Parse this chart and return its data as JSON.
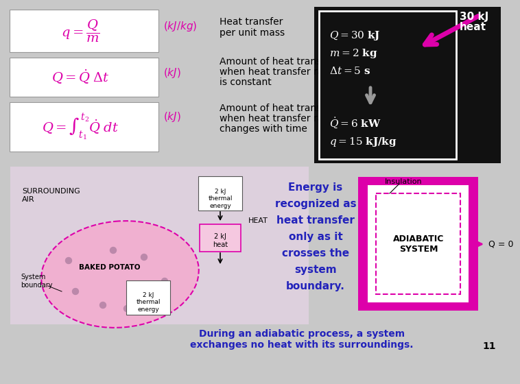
{
  "bg_color": "#c8c8c8",
  "slide_num": "11",
  "formula1_desc1": "Heat transfer",
  "formula1_desc2": "per unit mass",
  "formula2_desc1": "Amount of heat transfer",
  "formula2_desc2": "when heat transfer rate",
  "formula2_desc3": "is constant",
  "formula3_desc1": "Amount of heat transfer",
  "formula3_desc2": "when heat transfer rate",
  "formula3_desc3": "changes with time",
  "box_dark_bg": "#111111",
  "arrow_label1": "30 kJ",
  "arrow_label2": "heat",
  "magenta": "#dd00aa",
  "magenta_light": "#f0b0d0",
  "blue_text": "#2222bb",
  "energy_text": [
    "Energy is",
    "recognized as",
    "heat transfer",
    "only as it",
    "crosses the",
    "system",
    "boundary."
  ],
  "bottom_text1": "During an adiabatic process, a system",
  "bottom_text2": "exchanges no heat with its surroundings.",
  "adiabatic_label": "ADIABATIC\nSYSTEM",
  "insulation_label": "Insulation",
  "q_zero_label": "Q = 0",
  "surrounding_air": "SURROUNDING\nAIR",
  "baked_potato": "BAKED POTATO",
  "system_boundary": "System\nboundary",
  "heat_label": "HEAT"
}
